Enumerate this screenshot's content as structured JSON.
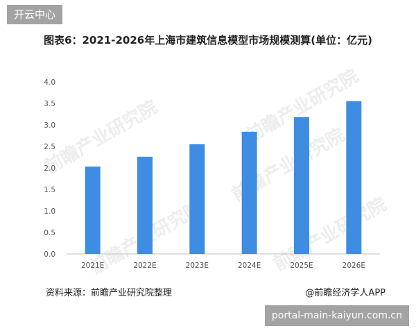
{
  "top_tag": "开云中心",
  "bottom_tag": "portal-main-kaiyun.com.cn",
  "chart_data": {
    "type": "bar",
    "title": "图表6：2021-2026年上海市建筑信息模型市场规模测算(单位：亿元)",
    "categories": [
      "2021E",
      "2022E",
      "2023E",
      "2024E",
      "2025E",
      "2026E"
    ],
    "values": [
      2.03,
      2.26,
      2.55,
      2.84,
      3.18,
      3.55
    ],
    "yticks": [
      "0.0",
      "0.5",
      "1.0",
      "1.5",
      "2.0",
      "2.5",
      "3.0",
      "3.5",
      "4.0"
    ],
    "ylim": [
      0,
      4.0
    ],
    "xlabel": "",
    "ylabel": "",
    "grid": false,
    "legend": "none",
    "bar_color": "#3f8ce3"
  },
  "source": "资料来源：前瞻产业研究院整理",
  "credit": "@前瞻经济学人APP",
  "watermark": "前瞻产业研究院"
}
